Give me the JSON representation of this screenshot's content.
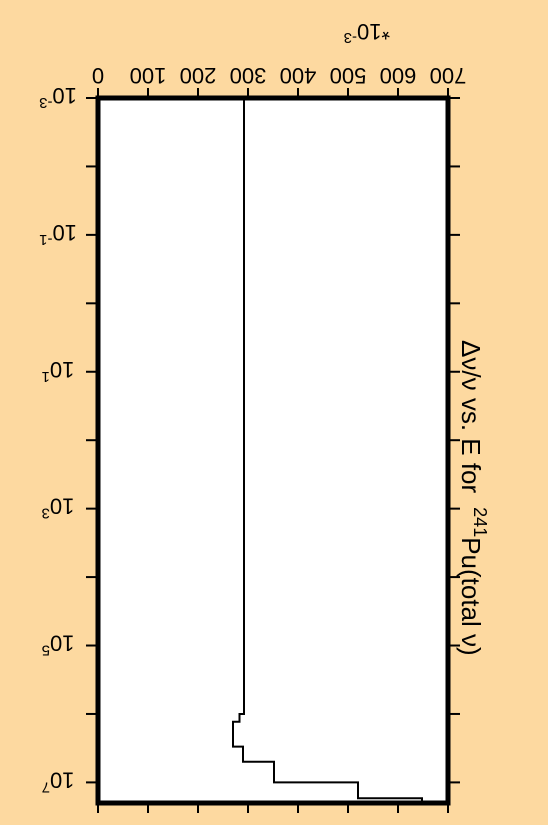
{
  "chart_data": {
    "type": "line",
    "title": "Δν/ν vs. E for",
    "title_isotope_mass": "241",
    "title_isotope_rest": "Pu(total ν)",
    "y_multiplier_label": "*10",
    "y_multiplier_exp": "-3",
    "x_scale": "log",
    "x_range": [
      0.001,
      20000000
    ],
    "y_range": [
      0,
      700
    ],
    "x_ticks": [
      {
        "base": "10",
        "exp": "-3",
        "value": 0.001
      },
      {
        "base": "10",
        "exp": "-1",
        "value": 0.1
      },
      {
        "base": "10",
        "exp": "1",
        "value": 10
      },
      {
        "base": "10",
        "exp": "3",
        "value": 1000
      },
      {
        "base": "10",
        "exp": "5",
        "value": 100000
      },
      {
        "base": "10",
        "exp": "7",
        "value": 10000000
      }
    ],
    "y_ticks": [
      "0",
      "100",
      "200",
      "300",
      "400",
      "500",
      "600",
      "700"
    ],
    "series": [
      {
        "style": "step",
        "color": "#000000",
        "x": [
          0.001,
          1000000,
          1300000,
          3000000,
          5000000,
          10000000,
          17000000,
          20000000
        ],
        "y": [
          292,
          283,
          270,
          290,
          352,
          520,
          648,
          648
        ]
      }
    ]
  }
}
